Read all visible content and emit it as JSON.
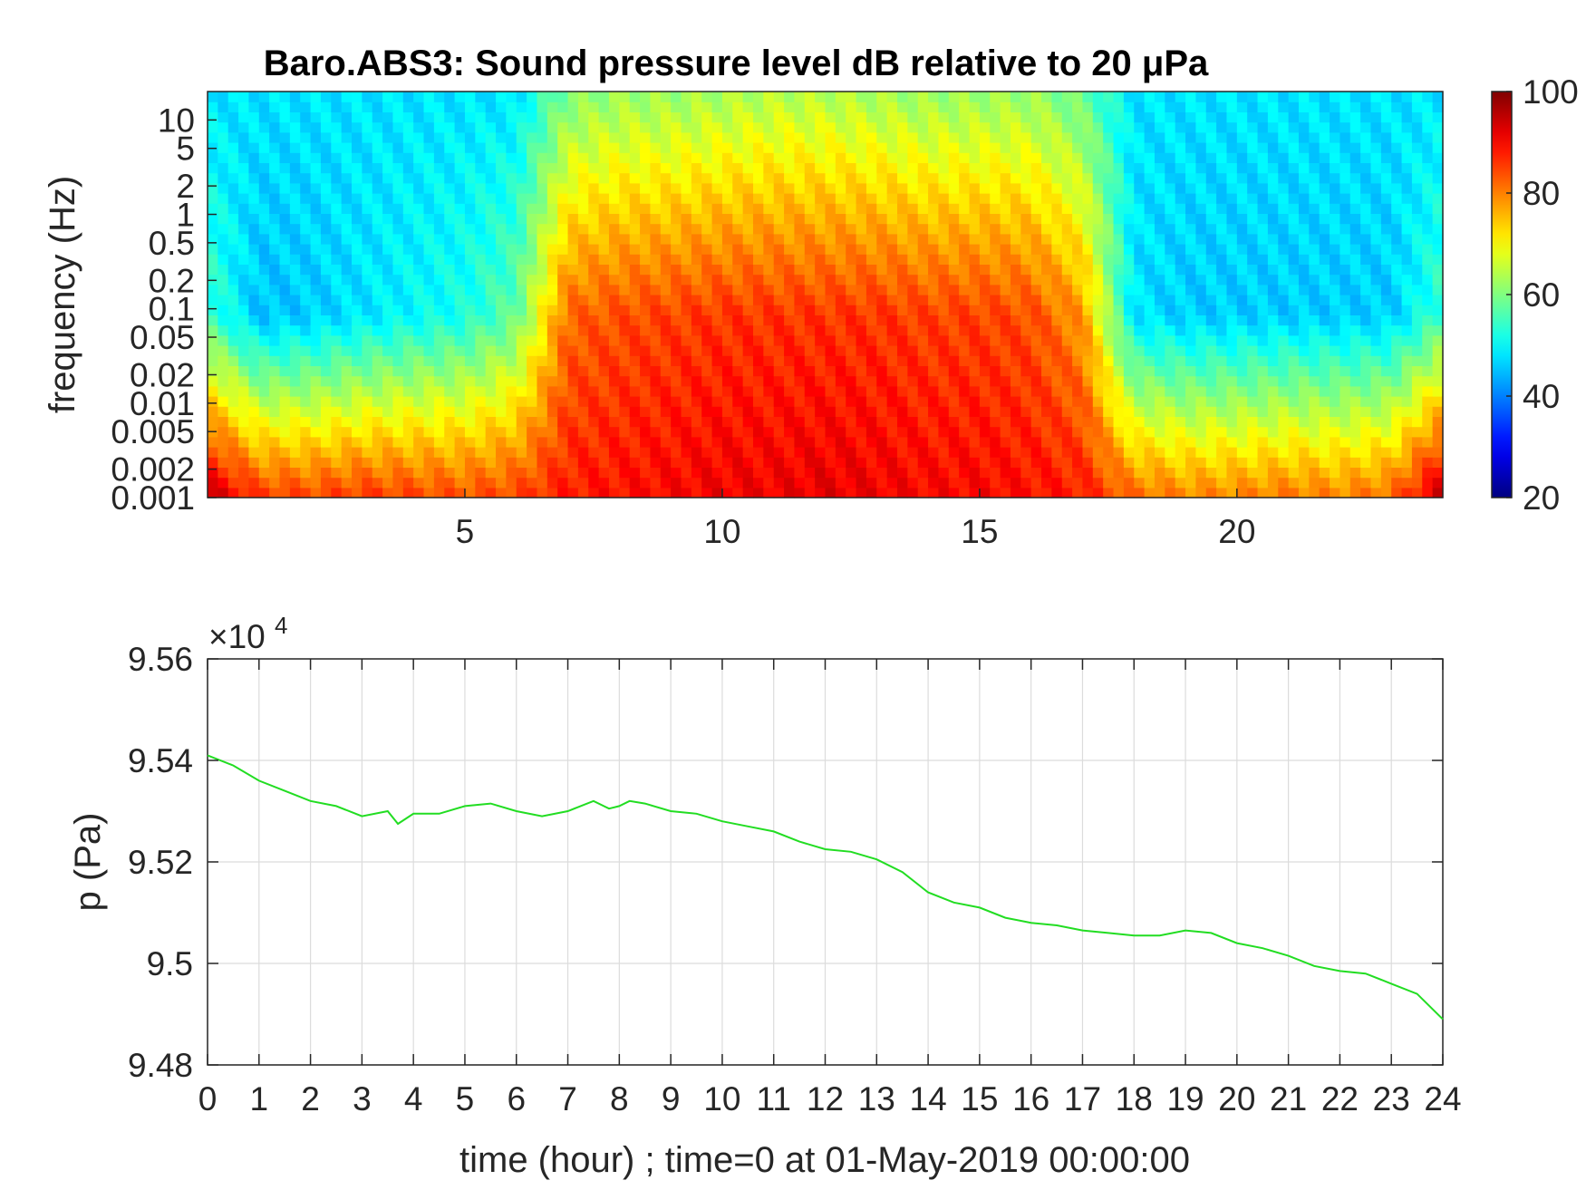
{
  "chart_data": [
    {
      "type": "heatmap",
      "title": "Baro.ABS3: Sound pressure level dB relative to 20 μPa",
      "ylabel": "frequency (Hz)",
      "xlabel": "",
      "x_ticks": [
        "5",
        "10",
        "15",
        "20"
      ],
      "x_tick_values": [
        5,
        10,
        15,
        20
      ],
      "xlim": [
        0,
        24
      ],
      "y_scale": "log",
      "ylim": [
        0.001,
        20
      ],
      "y_ticks": [
        "10",
        "5",
        "2",
        "1",
        "0.5",
        "0.2",
        "0.1",
        "0.05",
        "0.02",
        "0.01",
        "0.005",
        "0.002",
        "0.001"
      ],
      "y_tick_values": [
        10,
        5,
        2,
        1,
        0.5,
        0.2,
        0.1,
        0.05,
        0.02,
        0.01,
        0.005,
        0.002,
        0.001
      ],
      "colorbar": {
        "colormap": "jet",
        "range": [
          20,
          100
        ],
        "ticks": [
          "100",
          "80",
          "60",
          "40",
          "20"
        ],
        "tick_values": [
          100,
          80,
          60,
          40,
          20
        ]
      },
      "level_profile_db": {
        "time_hours": [
          0,
          1,
          2,
          3,
          4,
          5,
          6,
          7,
          8,
          9,
          10,
          11,
          12,
          13,
          14,
          15,
          16,
          17,
          18,
          19,
          20,
          21,
          22,
          23,
          24
        ],
        "low_freq_db": [
          95,
          86,
          85,
          86,
          85,
          84,
          85,
          88,
          89,
          90,
          91,
          91,
          92,
          91,
          90,
          90,
          89,
          88,
          82,
          80,
          80,
          81,
          80,
          82,
          95
        ],
        "mid_freq_db": [
          55,
          45,
          46,
          48,
          50,
          52,
          58,
          82,
          84,
          85,
          86,
          86,
          86,
          86,
          85,
          85,
          84,
          78,
          48,
          46,
          46,
          46,
          46,
          46,
          55
        ],
        "high_freq_db": [
          48,
          48,
          48,
          48,
          48,
          48,
          48,
          60,
          62,
          62,
          63,
          64,
          64,
          63,
          62,
          62,
          62,
          58,
          48,
          48,
          48,
          48,
          48,
          48,
          48
        ]
      },
      "grid": false
    },
    {
      "type": "line",
      "title": "",
      "xlabel": "time (hour) ; time=0 at 01-May-2019 00:00:00",
      "ylabel": "p (Pa)",
      "y_exponent_label": "×10",
      "y_exponent_power": "4",
      "xlim": [
        0,
        24
      ],
      "ylim": [
        94800,
        95600
      ],
      "x_ticks": [
        "0",
        "1",
        "2",
        "3",
        "4",
        "5",
        "6",
        "7",
        "8",
        "9",
        "10",
        "11",
        "12",
        "13",
        "14",
        "15",
        "16",
        "17",
        "18",
        "19",
        "20",
        "21",
        "22",
        "23",
        "24"
      ],
      "x_tick_values": [
        0,
        1,
        2,
        3,
        4,
        5,
        6,
        7,
        8,
        9,
        10,
        11,
        12,
        13,
        14,
        15,
        16,
        17,
        18,
        19,
        20,
        21,
        22,
        23,
        24
      ],
      "y_ticks": [
        "9.48",
        "9.5",
        "9.52",
        "9.54",
        "9.56"
      ],
      "y_tick_values": [
        94800,
        95000,
        95200,
        95400,
        95600
      ],
      "grid": true,
      "series": [
        {
          "color": "#22dd22",
          "x": [
            0,
            0.5,
            1,
            1.5,
            2,
            2.5,
            3,
            3.5,
            3.7,
            4,
            4.5,
            5,
            5.5,
            6,
            6.5,
            7,
            7.5,
            7.8,
            8,
            8.2,
            8.5,
            9,
            9.5,
            10,
            10.5,
            11,
            11.5,
            12,
            12.5,
            13,
            13.5,
            14,
            14.5,
            15,
            15.5,
            16,
            16.5,
            17,
            17.5,
            18,
            18.5,
            19,
            19.5,
            20,
            20.5,
            21,
            21.5,
            22,
            22.5,
            23,
            23.5,
            24
          ],
          "y": [
            95410,
            95390,
            95360,
            95340,
            95320,
            95310,
            95290,
            95300,
            95275,
            95295,
            95295,
            95310,
            95315,
            95300,
            95290,
            95300,
            95320,
            95305,
            95310,
            95320,
            95315,
            95300,
            95295,
            95280,
            95270,
            95260,
            95240,
            95225,
            95220,
            95205,
            95180,
            95140,
            95120,
            95110,
            95090,
            95080,
            95075,
            95065,
            95060,
            95055,
            95055,
            95065,
            95060,
            95040,
            95030,
            95015,
            94995,
            94985,
            94980,
            94960,
            94940,
            94890
          ]
        }
      ]
    }
  ]
}
